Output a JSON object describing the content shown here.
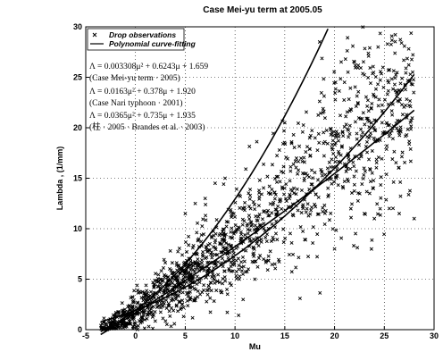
{
  "chart_data": {
    "type": "scatter",
    "title": "Case Mei-yu term at 2005.05",
    "xlabel": "Mu",
    "ylabel": "Lambda , (1/mm)",
    "xlim": [
      -5,
      30
    ],
    "ylim": [
      0,
      30
    ],
    "xticks": [
      -5,
      0,
      5,
      10,
      15,
      20,
      25,
      30
    ],
    "yticks": [
      0,
      5,
      10,
      15,
      20,
      25,
      30
    ],
    "grid": true,
    "legend": {
      "location": "top-left",
      "entries": [
        {
          "label": "Drop observations",
          "marker": "x"
        },
        {
          "label": "Polynomial curve-fitting",
          "marker": "line"
        }
      ]
    },
    "annotations": [
      "Λ = 0.003308μ² + 0.6243μ + 1.659",
      "(Case Mei-yu term · 2005)",
      "Λ = 0.0163μ² + 0.378μ + 1.920",
      "(Case Nari typhoon · 2001)",
      "Λ = 0.0365μ² + 0.735μ + 1.935",
      "(柱 · 2005 · Brandes et al. · 2003)"
    ],
    "fits": [
      {
        "label": "Case Mei-yu term 2005",
        "coefficients": [
          0.003308,
          0.6243,
          1.659
        ],
        "x_range": [
          -3.5,
          28
        ]
      },
      {
        "label": "Case Nari typhoon 2001",
        "coefficients": [
          0.0163,
          0.378,
          1.92
        ],
        "x_range": [
          -3.5,
          28
        ]
      },
      {
        "label": "Brandes et al. 2003",
        "coefficients": [
          0.0365,
          0.735,
          1.935
        ],
        "x_range": [
          -3.5,
          28
        ]
      }
    ],
    "scatter_summary": {
      "marker": "x",
      "point_count": 1600,
      "x_range": [
        -3.5,
        28
      ],
      "center_relation": [
        0.007,
        0.62,
        1.75
      ],
      "outliers": [
        {
          "x": 18.5,
          "y": 28.5
        },
        {
          "x": 8.0,
          "y": 14.5
        },
        {
          "x": 9.0,
          "y": 15.0
        },
        {
          "x": 5.0,
          "y": 11.5
        },
        {
          "x": 6.0,
          "y": 12.5
        },
        {
          "x": 7.0,
          "y": 13.0
        },
        {
          "x": 23.0,
          "y": 11.5
        },
        {
          "x": 24.0,
          "y": 11.0
        },
        {
          "x": 25.5,
          "y": 12.0
        },
        {
          "x": 26.5,
          "y": 11.5
        },
        {
          "x": 28.0,
          "y": 11.0
        },
        {
          "x": 22.0,
          "y": 26.5
        },
        {
          "x": 21.0,
          "y": 24.5
        },
        {
          "x": 15.0,
          "y": 20.5
        },
        {
          "x": 12.0,
          "y": 5.0
        },
        {
          "x": 14.0,
          "y": 6.5
        },
        {
          "x": 20.0,
          "y": 8.0
        },
        {
          "x": 17.5,
          "y": 19.0
        }
      ]
    }
  }
}
